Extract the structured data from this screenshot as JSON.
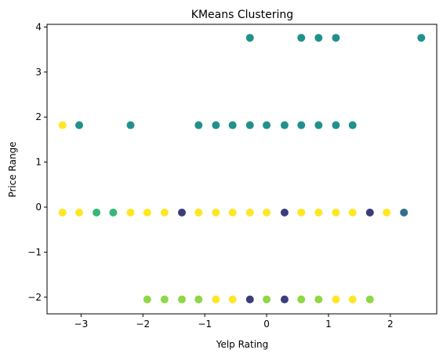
{
  "chart_data": {
    "type": "scatter",
    "title": "KMeans Clustering",
    "xlabel": "Yelp Rating",
    "ylabel": "Price Range",
    "xlim": [
      -3.55,
      2.75
    ],
    "ylim": [
      -2.37,
      4.06
    ],
    "xticks": [
      -3,
      -2,
      -1,
      0,
      1,
      2
    ],
    "yticks": [
      -2,
      -1,
      0,
      1,
      2,
      3,
      4
    ],
    "xtick_labels": [
      "−3",
      "−2",
      "−1",
      "0",
      "1",
      "2"
    ],
    "ytick_labels": [
      "−2",
      "−1",
      "0",
      "1",
      "2",
      "3",
      "4"
    ],
    "grid": false,
    "legend": "none",
    "cluster_colors": {
      "purple": "#3b3c7e",
      "darkteal": "#30708c",
      "teal": "#21918c",
      "green": "#35b779",
      "lightgreen": "#8fd744",
      "yellow": "#fde725"
    },
    "points": [
      {
        "x": -0.27,
        "y": 3.76,
        "cluster": "teal"
      },
      {
        "x": 0.56,
        "y": 3.76,
        "cluster": "teal"
      },
      {
        "x": 0.84,
        "y": 3.76,
        "cluster": "teal"
      },
      {
        "x": 1.12,
        "y": 3.76,
        "cluster": "teal"
      },
      {
        "x": 2.5,
        "y": 3.76,
        "cluster": "teal"
      },
      {
        "x": -3.3,
        "y": 1.82,
        "cluster": "yellow"
      },
      {
        "x": -3.03,
        "y": 1.82,
        "cluster": "teal"
      },
      {
        "x": -2.2,
        "y": 1.82,
        "cluster": "teal"
      },
      {
        "x": -1.1,
        "y": 1.82,
        "cluster": "teal"
      },
      {
        "x": -0.82,
        "y": 1.82,
        "cluster": "teal"
      },
      {
        "x": -0.55,
        "y": 1.82,
        "cluster": "teal"
      },
      {
        "x": -0.27,
        "y": 1.82,
        "cluster": "teal"
      },
      {
        "x": 0.0,
        "y": 1.82,
        "cluster": "teal"
      },
      {
        "x": 0.29,
        "y": 1.82,
        "cluster": "teal"
      },
      {
        "x": 0.56,
        "y": 1.82,
        "cluster": "teal"
      },
      {
        "x": 0.84,
        "y": 1.82,
        "cluster": "teal"
      },
      {
        "x": 1.12,
        "y": 1.82,
        "cluster": "teal"
      },
      {
        "x": 1.39,
        "y": 1.82,
        "cluster": "teal"
      },
      {
        "x": -3.3,
        "y": -0.12,
        "cluster": "yellow"
      },
      {
        "x": -3.03,
        "y": -0.12,
        "cluster": "yellow"
      },
      {
        "x": -2.75,
        "y": -0.12,
        "cluster": "green"
      },
      {
        "x": -2.48,
        "y": -0.12,
        "cluster": "green"
      },
      {
        "x": -2.2,
        "y": -0.12,
        "cluster": "yellow"
      },
      {
        "x": -1.93,
        "y": -0.12,
        "cluster": "yellow"
      },
      {
        "x": -1.65,
        "y": -0.12,
        "cluster": "yellow"
      },
      {
        "x": -1.37,
        "y": -0.12,
        "cluster": "purple"
      },
      {
        "x": -1.1,
        "y": -0.12,
        "cluster": "yellow"
      },
      {
        "x": -0.82,
        "y": -0.12,
        "cluster": "yellow"
      },
      {
        "x": -0.55,
        "y": -0.12,
        "cluster": "yellow"
      },
      {
        "x": -0.27,
        "y": -0.12,
        "cluster": "yellow"
      },
      {
        "x": 0.0,
        "y": -0.12,
        "cluster": "yellow"
      },
      {
        "x": 0.29,
        "y": -0.12,
        "cluster": "purple"
      },
      {
        "x": 0.56,
        "y": -0.12,
        "cluster": "yellow"
      },
      {
        "x": 0.84,
        "y": -0.12,
        "cluster": "yellow"
      },
      {
        "x": 1.12,
        "y": -0.12,
        "cluster": "yellow"
      },
      {
        "x": 1.39,
        "y": -0.12,
        "cluster": "yellow"
      },
      {
        "x": 1.67,
        "y": -0.12,
        "cluster": "purple"
      },
      {
        "x": 1.94,
        "y": -0.12,
        "cluster": "yellow"
      },
      {
        "x": 2.22,
        "y": -0.12,
        "cluster": "darkteal"
      },
      {
        "x": -1.93,
        "y": -2.05,
        "cluster": "lightgreen"
      },
      {
        "x": -1.65,
        "y": -2.05,
        "cluster": "lightgreen"
      },
      {
        "x": -1.37,
        "y": -2.05,
        "cluster": "lightgreen"
      },
      {
        "x": -1.1,
        "y": -2.05,
        "cluster": "lightgreen"
      },
      {
        "x": -0.82,
        "y": -2.05,
        "cluster": "yellow"
      },
      {
        "x": -0.55,
        "y": -2.05,
        "cluster": "yellow"
      },
      {
        "x": -0.27,
        "y": -2.05,
        "cluster": "purple"
      },
      {
        "x": 0.0,
        "y": -2.05,
        "cluster": "lightgreen"
      },
      {
        "x": 0.29,
        "y": -2.05,
        "cluster": "purple"
      },
      {
        "x": 0.56,
        "y": -2.05,
        "cluster": "lightgreen"
      },
      {
        "x": 0.84,
        "y": -2.05,
        "cluster": "lightgreen"
      },
      {
        "x": 1.12,
        "y": -2.05,
        "cluster": "yellow"
      },
      {
        "x": 1.39,
        "y": -2.05,
        "cluster": "yellow"
      },
      {
        "x": 1.67,
        "y": -2.05,
        "cluster": "lightgreen"
      }
    ]
  }
}
